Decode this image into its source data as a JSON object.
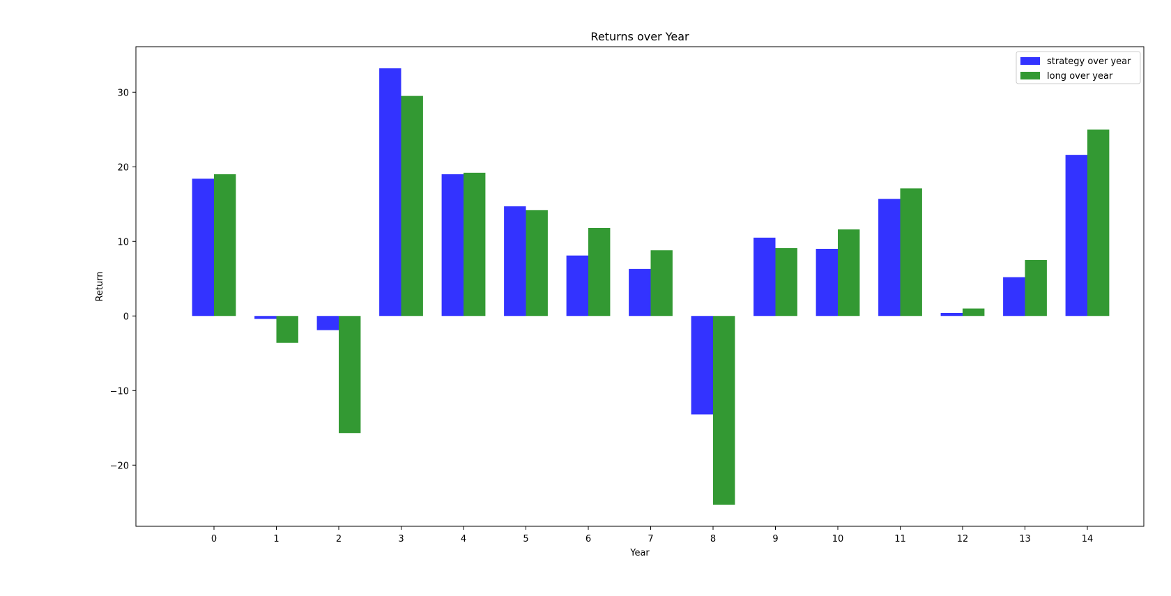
{
  "chart_data": {
    "type": "bar",
    "title": "Returns over Year",
    "xlabel": "Year",
    "ylabel": "Return",
    "categories": [
      "0",
      "1",
      "2",
      "3",
      "4",
      "5",
      "6",
      "7",
      "8",
      "9",
      "10",
      "11",
      "12",
      "13",
      "14"
    ],
    "series": [
      {
        "name": "strategy over year",
        "color": "#3333ff",
        "values": [
          18.4,
          -0.4,
          -1.9,
          33.2,
          19.0,
          14.7,
          8.1,
          6.3,
          -13.2,
          10.5,
          9.0,
          15.7,
          0.4,
          5.2,
          21.6
        ]
      },
      {
        "name": "long over year",
        "color": "#339933",
        "values": [
          19.0,
          -3.6,
          -15.7,
          29.5,
          19.2,
          14.2,
          11.8,
          8.8,
          -25.3,
          9.1,
          11.6,
          17.1,
          1.0,
          7.5,
          25.0
        ]
      }
    ],
    "ylim": [
      -28.2,
      36.1
    ],
    "yticks": [
      -20,
      -10,
      0,
      10,
      20,
      30
    ],
    "ytick_labels": [
      "−20",
      "−10",
      "0",
      "10",
      "20",
      "30"
    ],
    "legend_position": "top-right",
    "grid": false
  }
}
